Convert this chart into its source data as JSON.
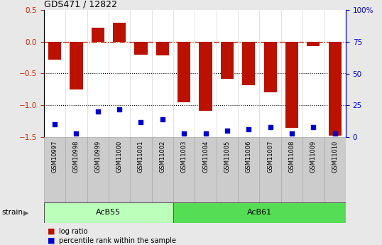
{
  "title": "GDS471 / 12822",
  "samples": [
    "GSM10997",
    "GSM10998",
    "GSM10999",
    "GSM11000",
    "GSM11001",
    "GSM11002",
    "GSM11003",
    "GSM11004",
    "GSM11005",
    "GSM11006",
    "GSM11007",
    "GSM11008",
    "GSM11009",
    "GSM11010"
  ],
  "log_ratio": [
    -0.28,
    -0.75,
    0.22,
    0.3,
    -0.2,
    -0.22,
    -0.95,
    -1.08,
    -0.58,
    -0.68,
    -0.8,
    -1.35,
    -0.07,
    -1.48
  ],
  "percentile_rank": [
    10,
    3,
    20,
    22,
    12,
    14,
    3,
    3,
    5,
    6,
    8,
    3,
    8,
    3
  ],
  "bar_color": "#bb1100",
  "marker_color": "#0000cc",
  "zero_line_color": "#cc2200",
  "dotted_line_color": "#000000",
  "ylim_left": [
    -1.5,
    0.5
  ],
  "ylim_right": [
    0,
    100
  ],
  "group1_label": "AcB55",
  "group1_indices": [
    0,
    1,
    2,
    3,
    4,
    5
  ],
  "group2_label": "AcB61",
  "group2_indices": [
    6,
    7,
    8,
    9,
    10,
    11,
    12,
    13
  ],
  "group1_color": "#bbffbb",
  "group2_color": "#55dd55",
  "strain_label": "strain",
  "legend_log_ratio": "log ratio",
  "legend_percentile": "percentile rank within the sample",
  "yticks_left": [
    -1.5,
    -1.0,
    -0.5,
    0.0,
    0.5
  ],
  "yticks_right": [
    0,
    25,
    50,
    75,
    100
  ],
  "background_color": "#ffffff",
  "outer_bg": "#e8e8e8",
  "label_box_color": "#cccccc"
}
